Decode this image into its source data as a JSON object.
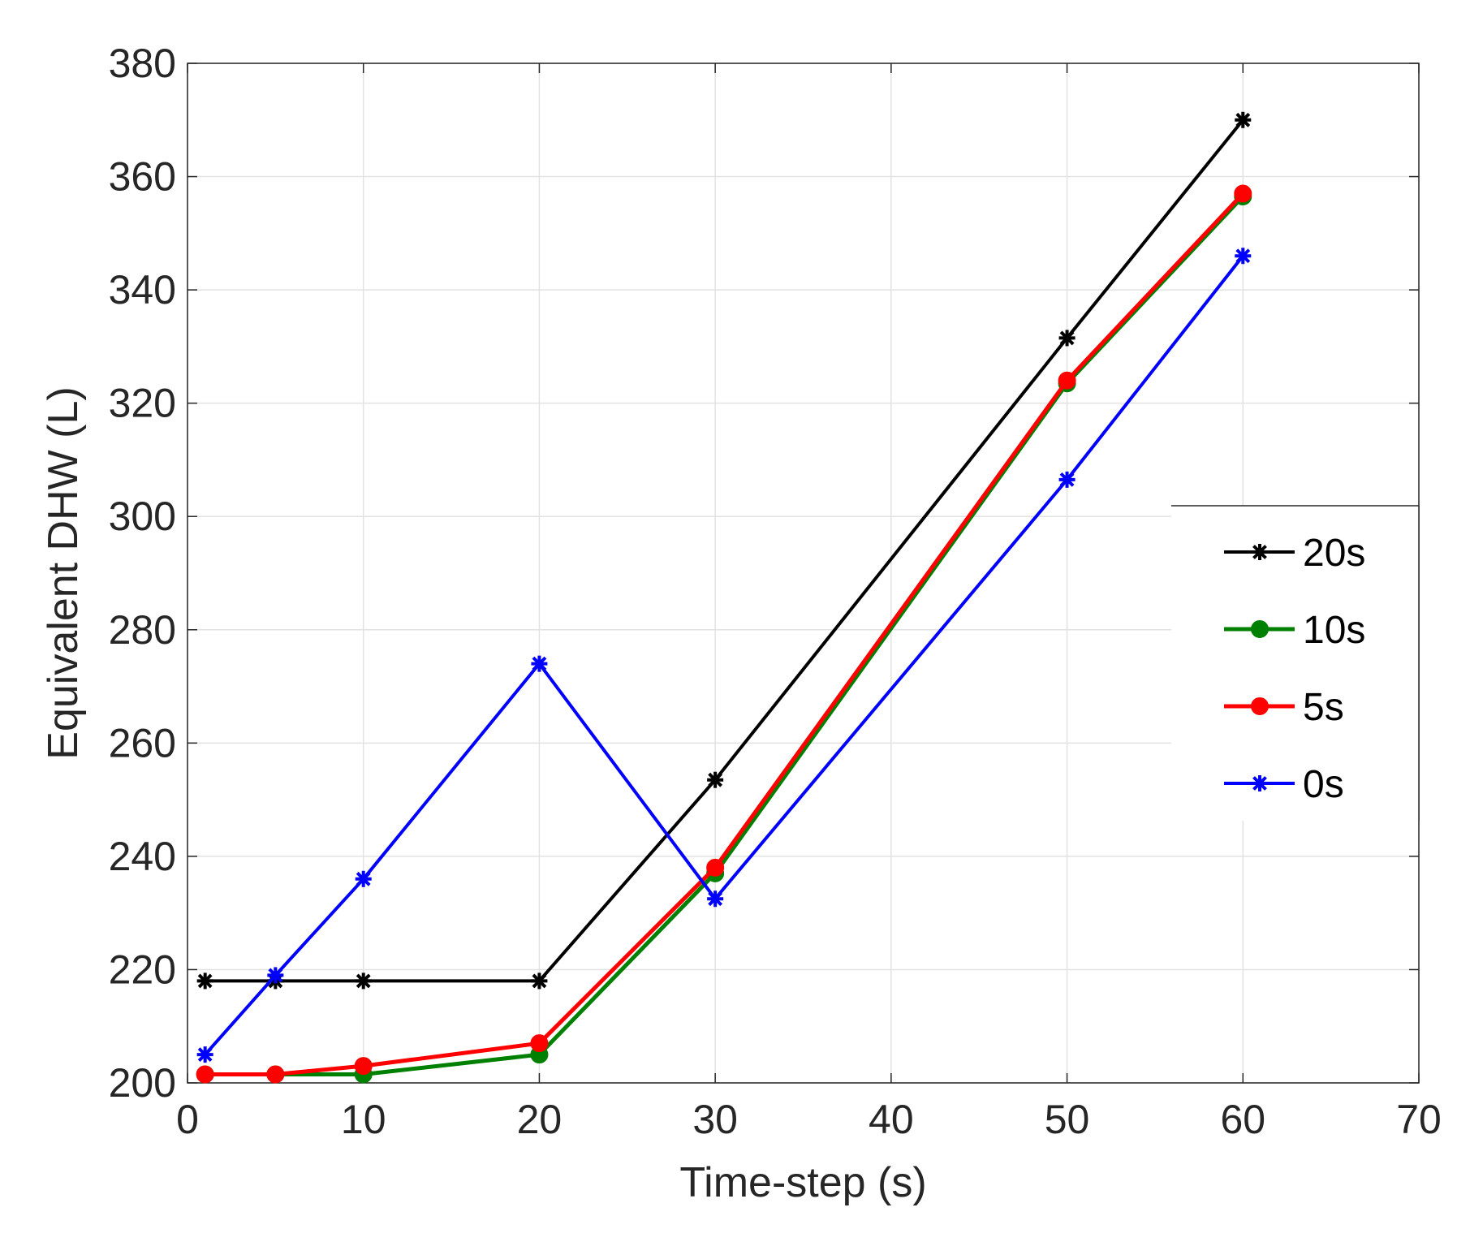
{
  "chart_data": {
    "type": "line",
    "title": "",
    "xlabel": "Time-step (s)",
    "ylabel": "Equivalent DHW (L)",
    "xlim": [
      0,
      70
    ],
    "ylim": [
      200,
      380
    ],
    "xticks": [
      0,
      10,
      20,
      30,
      40,
      50,
      60,
      70
    ],
    "yticks": [
      200,
      220,
      240,
      260,
      280,
      300,
      320,
      340,
      360,
      380
    ],
    "grid": true,
    "legend_position": "right",
    "x": [
      1,
      5,
      10,
      20,
      30,
      50,
      60
    ],
    "series": [
      {
        "name": "20s",
        "color": "#000000",
        "marker": "asterisk",
        "values": [
          218,
          218,
          218,
          218,
          253.5,
          331.5,
          370
        ]
      },
      {
        "name": "10s",
        "color": "#008000",
        "marker": "circle",
        "values": [
          201.5,
          201.5,
          201.5,
          205,
          237,
          323.5,
          356.5
        ]
      },
      {
        "name": "5s",
        "color": "#ff0000",
        "marker": "circle",
        "values": [
          201.5,
          201.5,
          203,
          207,
          238,
          324,
          357
        ]
      },
      {
        "name": "0s",
        "color": "#0000ff",
        "marker": "asterisk",
        "values": [
          205,
          219,
          236,
          274,
          232.5,
          306.5,
          346
        ]
      }
    ]
  }
}
